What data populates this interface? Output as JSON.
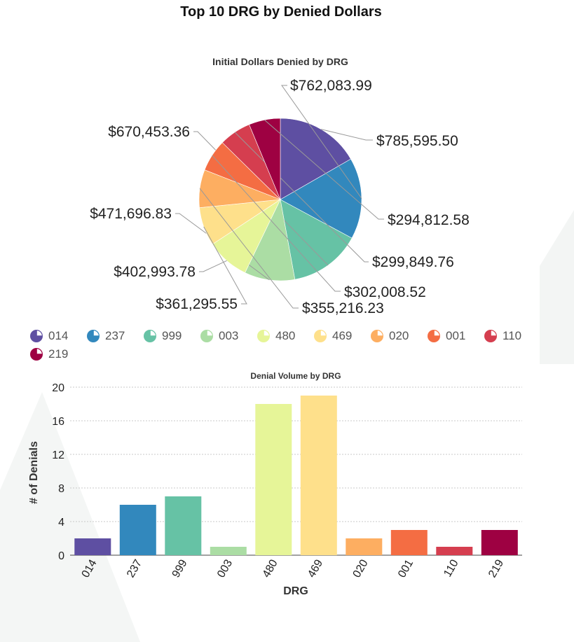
{
  "page": {
    "title": "Top 10 DRG by Denied Dollars"
  },
  "chart_data": [
    {
      "type": "pie",
      "title": "Initial Dollars Denied by DRG",
      "categories": [
        "014",
        "237",
        "999",
        "003",
        "480",
        "469",
        "020",
        "001",
        "110",
        "219"
      ],
      "values": [
        785595.5,
        762083.99,
        670453.36,
        471696.83,
        402993.78,
        361295.55,
        355216.23,
        302008.52,
        299849.76,
        294812.58
      ],
      "labels": [
        "$785,595.50",
        "$762,083.99",
        "$670,453.36",
        "$471,696.83",
        "$402,993.78",
        "$361,295.55",
        "$355,216.23",
        "$302,008.52",
        "$299,849.76",
        "$294,812.58"
      ],
      "colors": [
        "#5e4fa2",
        "#3288bd",
        "#66c2a5",
        "#abdda4",
        "#e6f598",
        "#fee08b",
        "#fdae61",
        "#f46d43",
        "#d53e4f",
        "#9e0142"
      ],
      "legend": "bottom"
    },
    {
      "type": "bar",
      "title": "Denial Volume by DRG",
      "categories": [
        "014",
        "237",
        "999",
        "003",
        "480",
        "469",
        "020",
        "001",
        "110",
        "219"
      ],
      "values": [
        2,
        6,
        7,
        1,
        18,
        19,
        2,
        3,
        1,
        3
      ],
      "colors": [
        "#5e4fa2",
        "#3288bd",
        "#66c2a5",
        "#abdda4",
        "#e6f598",
        "#fee08b",
        "#fdae61",
        "#f46d43",
        "#d53e4f",
        "#9e0142"
      ],
      "xlabel": "DRG",
      "ylabel": "# of Denials",
      "ylim": [
        0,
        20
      ],
      "yticks": [
        0,
        4,
        8,
        12,
        16,
        20
      ],
      "grid": true
    }
  ]
}
